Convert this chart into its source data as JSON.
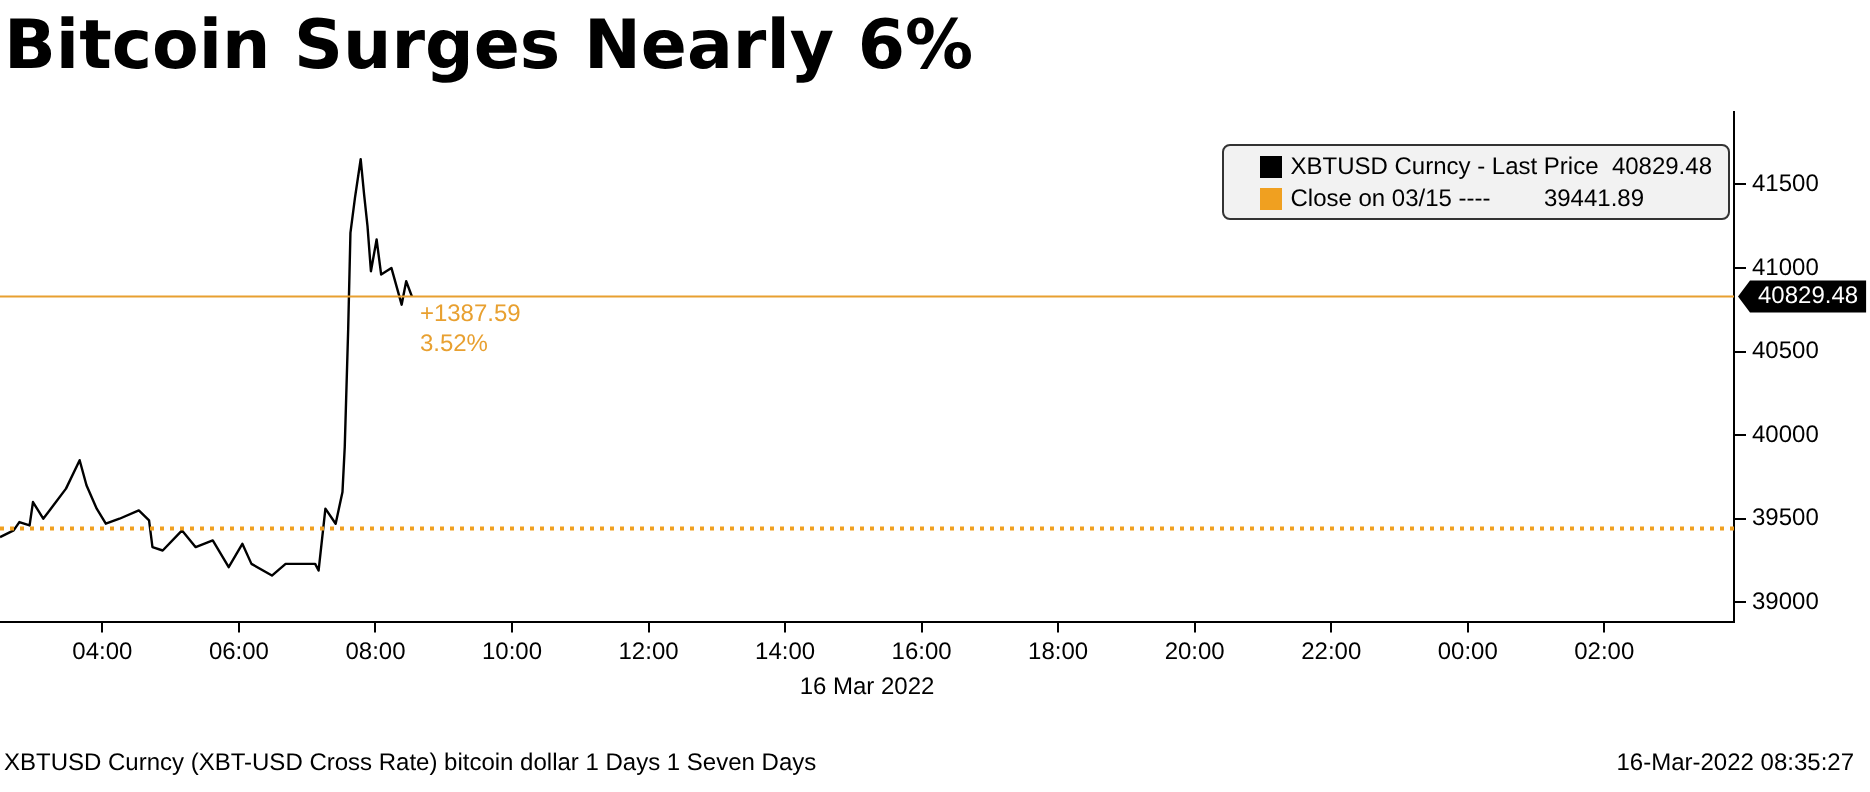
{
  "chart_data": {
    "type": "line",
    "title": "Bitcoin Surges Nearly 6%",
    "xlabel": "16 Mar 2022",
    "x": [
      "2022-03-16T02:30",
      "2022-03-16T02:42",
      "2022-03-16T02:47",
      "2022-03-16T02:56",
      "2022-03-16T02:59",
      "2022-03-16T03:08",
      "2022-03-16T03:17",
      "2022-03-16T03:28",
      "2022-03-16T03:40",
      "2022-03-16T03:46",
      "2022-03-16T03:55",
      "2022-03-16T04:03",
      "2022-03-16T04:15",
      "2022-03-16T04:32",
      "2022-03-16T04:41",
      "2022-03-16T04:44",
      "2022-03-16T04:53",
      "2022-03-16T05:10",
      "2022-03-16T05:22",
      "2022-03-16T05:37",
      "2022-03-16T05:51",
      "2022-03-16T06:03",
      "2022-03-16T06:11",
      "2022-03-16T06:29",
      "2022-03-16T06:41",
      "2022-03-16T07:07",
      "2022-03-16T07:10",
      "2022-03-16T07:16",
      "2022-03-16T07:25",
      "2022-03-16T07:31",
      "2022-03-16T07:33",
      "2022-03-16T07:36",
      "2022-03-16T07:38",
      "2022-03-16T07:42",
      "2022-03-16T07:47",
      "2022-03-16T07:50",
      "2022-03-16T07:53",
      "2022-03-16T07:56",
      "2022-03-16T08:01",
      "2022-03-16T08:05",
      "2022-03-16T08:14",
      "2022-03-16T08:23",
      "2022-03-16T08:27",
      "2022-03-16T08:32"
    ],
    "series": [
      {
        "name": "XBTUSD Curncy - Last Price  40829.48",
        "color": "#000000",
        "values": [
          39390,
          39430,
          39480,
          39460,
          39600,
          39500,
          39580,
          39680,
          39850,
          39700,
          39560,
          39470,
          39500,
          39550,
          39490,
          39330,
          39310,
          39430,
          39330,
          39370,
          39210,
          39350,
          39230,
          39160,
          39230,
          39230,
          39190,
          39560,
          39470,
          39660,
          39930,
          40630,
          41210,
          41420,
          41650,
          41440,
          41250,
          40980,
          41170,
          40960,
          41000,
          40780,
          40920,
          40829.48
        ]
      }
    ],
    "xlim": [
      "2022-03-16T02:30",
      "2022-03-17T03:54"
    ],
    "ylim": [
      38880,
      41930
    ],
    "xticks": [
      {
        "value": "2022-03-16T04:00",
        "label": "04:00"
      },
      {
        "value": "2022-03-16T06:00",
        "label": "06:00"
      },
      {
        "value": "2022-03-16T08:00",
        "label": "08:00"
      },
      {
        "value": "2022-03-16T10:00",
        "label": "10:00"
      },
      {
        "value": "2022-03-16T12:00",
        "label": "12:00"
      },
      {
        "value": "2022-03-16T14:00",
        "label": "14:00"
      },
      {
        "value": "2022-03-16T16:00",
        "label": "16:00"
      },
      {
        "value": "2022-03-16T18:00",
        "label": "18:00"
      },
      {
        "value": "2022-03-16T20:00",
        "label": "20:00"
      },
      {
        "value": "2022-03-16T22:00",
        "label": "22:00"
      },
      {
        "value": "2022-03-17T00:00",
        "label": "00:00"
      },
      {
        "value": "2022-03-17T02:00",
        "label": "02:00"
      }
    ],
    "yticks": [
      39000,
      39500,
      40000,
      40500,
      41000,
      41500
    ],
    "ref_lines": [
      {
        "axis": "y",
        "value": 39441.89,
        "label": "Close on 03/15 ----        39441.89",
        "color": "#f0a020",
        "line_style": "dotted"
      },
      {
        "axis": "y",
        "value": 40829.48,
        "label": "40829.48",
        "color": "#e8a030",
        "line_style": "solid"
      }
    ],
    "annotations": [
      {
        "text": "+1387.59",
        "x": "2022-03-16T08:32",
        "y": 40829.48
      },
      {
        "text": "3.52%",
        "x": "2022-03-16T08:32",
        "y": 40829.48
      },
      "XBTUSD Curncy (XBT-USD Cross Rate) bitcoin dollar 1 Days 1 Seven Days",
      "16-Mar-2022 08:35:27"
    ],
    "legend": "top right",
    "grid": false,
    "marker": "none",
    "line_style": "solid"
  }
}
